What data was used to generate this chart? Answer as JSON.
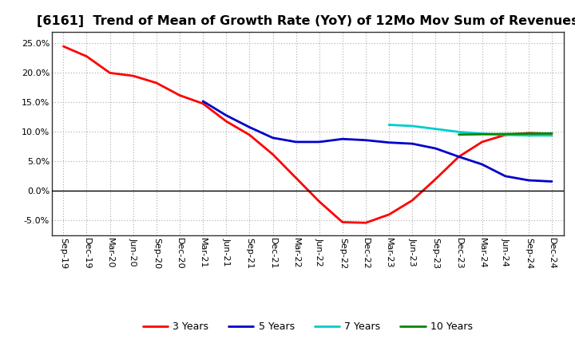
{
  "title": "[6161]  Trend of Mean of Growth Rate (YoY) of 12Mo Mov Sum of Revenues",
  "title_fontsize": 11.5,
  "tick_fontsize": 8,
  "legend_fontsize": 9,
  "ylim": [
    -0.075,
    0.27
  ],
  "yticks": [
    -0.05,
    0.0,
    0.05,
    0.1,
    0.15,
    0.2,
    0.25
  ],
  "background_color": "#ffffff",
  "grid_color": "#aaaaaa",
  "x_labels": [
    "Sep-19",
    "Dec-19",
    "Mar-20",
    "Jun-20",
    "Sep-20",
    "Dec-20",
    "Mar-21",
    "Jun-21",
    "Sep-21",
    "Dec-21",
    "Mar-22",
    "Jun-22",
    "Sep-22",
    "Dec-22",
    "Mar-23",
    "Jun-23",
    "Sep-23",
    "Dec-23",
    "Mar-24",
    "Jun-24",
    "Sep-24",
    "Dec-24"
  ],
  "series": {
    "3 Years": {
      "color": "#ff0000",
      "linewidth": 2.0,
      "data_x": [
        0,
        1,
        2,
        3,
        4,
        5,
        6,
        7,
        8,
        9,
        10,
        11,
        12,
        13,
        14,
        15,
        16,
        17,
        18,
        19,
        20,
        21
      ],
      "data_y": [
        0.245,
        0.228,
        0.2,
        0.195,
        0.183,
        0.162,
        0.148,
        0.118,
        0.095,
        0.062,
        0.022,
        -0.018,
        -0.053,
        -0.054,
        -0.04,
        -0.016,
        0.02,
        0.058,
        0.083,
        0.095,
        0.098,
        0.097
      ]
    },
    "5 Years": {
      "color": "#0000cc",
      "linewidth": 2.0,
      "data_x": [
        6,
        7,
        8,
        9,
        10,
        11,
        12,
        13,
        14,
        15,
        16,
        17,
        18,
        19,
        20,
        21
      ],
      "data_y": [
        0.152,
        0.128,
        0.108,
        0.09,
        0.083,
        0.083,
        0.088,
        0.086,
        0.082,
        0.08,
        0.072,
        0.058,
        0.045,
        0.025,
        0.018,
        0.016
      ]
    },
    "7 Years": {
      "color": "#00cccc",
      "linewidth": 2.0,
      "data_x": [
        14,
        15,
        16,
        17,
        18,
        19,
        20,
        21
      ],
      "data_y": [
        0.112,
        0.11,
        0.105,
        0.1,
        0.097,
        0.095,
        0.094,
        0.094
      ]
    },
    "10 Years": {
      "color": "#008800",
      "linewidth": 2.0,
      "data_x": [
        17,
        18,
        19,
        20,
        21
      ],
      "data_y": [
        0.0955,
        0.096,
        0.0965,
        0.097,
        0.0975
      ]
    }
  }
}
